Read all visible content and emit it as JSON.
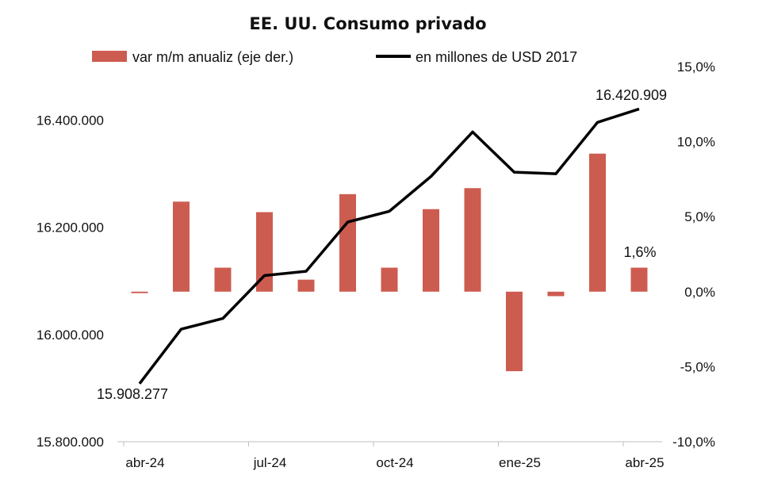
{
  "chart_data": {
    "type": "bar+line",
    "title": "EE. UU. Consumo privado",
    "months": [
      "abr-24",
      "may-24",
      "jun-24",
      "jul-24",
      "ago-24",
      "sep-24",
      "oct-24",
      "nov-24",
      "dic-24",
      "ene-25",
      "feb-25",
      "mar-25",
      "abr-25"
    ],
    "x_tick_labels": [
      "abr-24",
      "jul-24",
      "oct-24",
      "ene-25",
      "abr-25"
    ],
    "x_tick_indices": [
      0,
      3,
      6,
      9,
      12
    ],
    "series": [
      {
        "name": "var m/m anualiz (eje der.)",
        "type": "bar",
        "axis": "right",
        "color": "#cd5c50",
        "values": [
          -0.1,
          6.0,
          1.6,
          5.3,
          0.8,
          6.5,
          1.6,
          5.5,
          6.9,
          -5.3,
          -0.3,
          9.2,
          1.6
        ]
      },
      {
        "name": "en millones de USD 2017",
        "type": "line",
        "axis": "left",
        "color": "#000000",
        "values": [
          15908277,
          16010000,
          16030000,
          16110000,
          16118000,
          16210000,
          16230000,
          16295000,
          16378000,
          16303000,
          16300000,
          16396000,
          16420909
        ]
      }
    ],
    "left_axis": {
      "min": 15800000,
      "max": 16500000,
      "ticks": [
        "15.800.000",
        "16.000.000",
        "16.200.000",
        "16.400.000"
      ],
      "tick_values": [
        15800000,
        16000000,
        16200000,
        16400000
      ]
    },
    "right_axis": {
      "min": -10,
      "max": 15,
      "ticks": [
        "-10,0%",
        "-5,0%",
        "0,0%",
        "5,0%",
        "10,0%",
        "15,0%"
      ],
      "tick_values": [
        -10,
        -5,
        0,
        5,
        10,
        15
      ]
    },
    "annotations": {
      "first_value": "15.908.277",
      "last_value": "16.420.909",
      "last_bar": "1,6%"
    },
    "legend_position": "top"
  }
}
